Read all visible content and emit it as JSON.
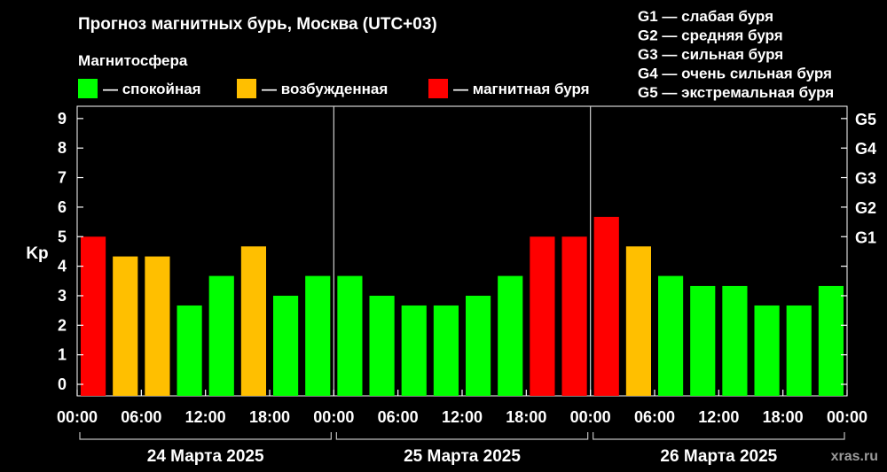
{
  "chart_data": {
    "type": "bar",
    "title": "Прогноз магнитных бурь, Москва (UTC+03)",
    "legend_title": "Магнитосфера",
    "legend": [
      {
        "key": "calm",
        "label": "— спокойная",
        "color": "#00ff00"
      },
      {
        "key": "excited",
        "label": "— возбужденная",
        "color": "#ffbf00"
      },
      {
        "key": "storm",
        "label": "— магнитная буря",
        "color": "#ff0000"
      }
    ],
    "storm_scale": [
      "G1 — слабая буря",
      "G2 — средняя буря",
      "G3 — сильная буря",
      "G4 — очень сильная буря",
      "G5 — экстремальная буря"
    ],
    "ylabel": "Kp",
    "ylim": [
      0,
      9
    ],
    "y_ticks": [
      "0",
      "1",
      "2",
      "3",
      "4",
      "5",
      "6",
      "7",
      "8",
      "9"
    ],
    "g_ticks": [
      {
        "label": "G1",
        "kp": 5
      },
      {
        "label": "G2",
        "kp": 6
      },
      {
        "label": "G3",
        "kp": 7
      },
      {
        "label": "G4",
        "kp": 8
      },
      {
        "label": "G5",
        "kp": 9
      }
    ],
    "x_ticks": [
      "00:00",
      "06:00",
      "12:00",
      "18:00",
      "00:00",
      "06:00",
      "12:00",
      "18:00",
      "00:00",
      "06:00",
      "12:00",
      "18:00",
      "00:00"
    ],
    "days": [
      "24 Марта 2025",
      "25 Марта 2025",
      "26 Марта 2025"
    ],
    "bars": [
      {
        "kp": 5.0,
        "level": "storm"
      },
      {
        "kp": 4.33,
        "level": "excited"
      },
      {
        "kp": 4.33,
        "level": "excited"
      },
      {
        "kp": 2.67,
        "level": "calm"
      },
      {
        "kp": 3.67,
        "level": "calm"
      },
      {
        "kp": 4.67,
        "level": "excited"
      },
      {
        "kp": 3.0,
        "level": "calm"
      },
      {
        "kp": 3.67,
        "level": "calm"
      },
      {
        "kp": 3.67,
        "level": "calm"
      },
      {
        "kp": 3.0,
        "level": "calm"
      },
      {
        "kp": 2.67,
        "level": "calm"
      },
      {
        "kp": 2.67,
        "level": "calm"
      },
      {
        "kp": 3.0,
        "level": "calm"
      },
      {
        "kp": 3.67,
        "level": "calm"
      },
      {
        "kp": 5.0,
        "level": "storm"
      },
      {
        "kp": 5.0,
        "level": "storm"
      },
      {
        "kp": 5.67,
        "level": "storm"
      },
      {
        "kp": 4.67,
        "level": "excited"
      },
      {
        "kp": 3.67,
        "level": "calm"
      },
      {
        "kp": 3.33,
        "level": "calm"
      },
      {
        "kp": 3.33,
        "level": "calm"
      },
      {
        "kp": 2.67,
        "level": "calm"
      },
      {
        "kp": 2.67,
        "level": "calm"
      },
      {
        "kp": 3.33,
        "level": "calm"
      }
    ],
    "watermark": "xras.ru"
  }
}
